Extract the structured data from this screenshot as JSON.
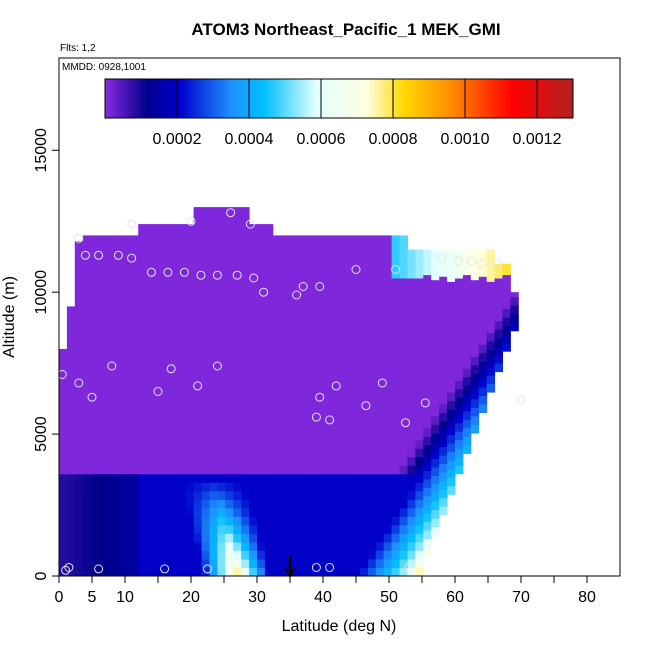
{
  "chart_data": {
    "type": "heatmap",
    "title": "ATOM3 Northeast_Pacific_1 MEK_GMI",
    "flights_note": "Flts: 1,2",
    "date_note": "MMDD: 0928,1001",
    "xlabel": "Latitude (deg N)",
    "ylabel": "Altitude (m)",
    "xlim": [
      0,
      84
    ],
    "ylim": [
      0,
      18000
    ],
    "x_ticks": [
      0,
      5,
      10,
      20,
      30,
      40,
      50,
      60,
      70,
      80
    ],
    "y_ticks": [
      0,
      5000,
      10000,
      15000
    ],
    "colorbar": {
      "range": [
        0,
        0.0013
      ],
      "ticks": [
        0.0002,
        0.0004,
        0.0006,
        0.0008,
        0.001,
        0.0012
      ],
      "tick_labels": [
        "0.0002",
        "0.0004",
        "0.0006",
        "0.0008",
        "0.0010",
        "0.0012"
      ],
      "colors": [
        "#8a2be2",
        "#00008b",
        "#0000cd",
        "#1e90ff",
        "#00bfff",
        "#e0ffff",
        "#ffffe0",
        "#ffd700",
        "#ff8c00",
        "#ff0000",
        "#b22222"
      ]
    },
    "arrow_latitude": 35,
    "sample_points": [
      [
        0.5,
        7100
      ],
      [
        1,
        200
      ],
      [
        1.5,
        300
      ],
      [
        3,
        11900
      ],
      [
        3,
        6800
      ],
      [
        4,
        11300
      ],
      [
        5,
        6300
      ],
      [
        6,
        11300
      ],
      [
        6,
        250
      ],
      [
        8,
        7400
      ],
      [
        9,
        11300
      ],
      [
        11,
        11200
      ],
      [
        11,
        12400
      ],
      [
        14,
        10700
      ],
      [
        15,
        6500
      ],
      [
        16,
        250
      ],
      [
        16.5,
        10700
      ],
      [
        17,
        7300
      ],
      [
        19,
        10700
      ],
      [
        20,
        12500
      ],
      [
        21,
        6700
      ],
      [
        21.5,
        10600
      ],
      [
        22.5,
        250
      ],
      [
        24,
        7400
      ],
      [
        24,
        10600
      ],
      [
        26,
        12800
      ],
      [
        27,
        10600
      ],
      [
        29,
        12400
      ],
      [
        29.5,
        10500
      ],
      [
        31,
        10000
      ],
      [
        36,
        9900
      ],
      [
        37,
        10200
      ],
      [
        39,
        300
      ],
      [
        39,
        5600
      ],
      [
        39.5,
        6300
      ],
      [
        39.5,
        10200
      ],
      [
        41,
        5500
      ],
      [
        41,
        300
      ],
      [
        42,
        6700
      ],
      [
        45,
        10800
      ],
      [
        46.5,
        6000
      ],
      [
        49,
        6800
      ],
      [
        51,
        10800
      ],
      [
        52.5,
        5400
      ],
      [
        53,
        300
      ],
      [
        55.5,
        6100
      ],
      [
        58,
        11200
      ],
      [
        60.5,
        11100
      ],
      [
        62.5,
        11100
      ],
      [
        64,
        11000
      ],
      [
        66.5,
        11000
      ],
      [
        70,
        6200
      ]
    ]
  }
}
